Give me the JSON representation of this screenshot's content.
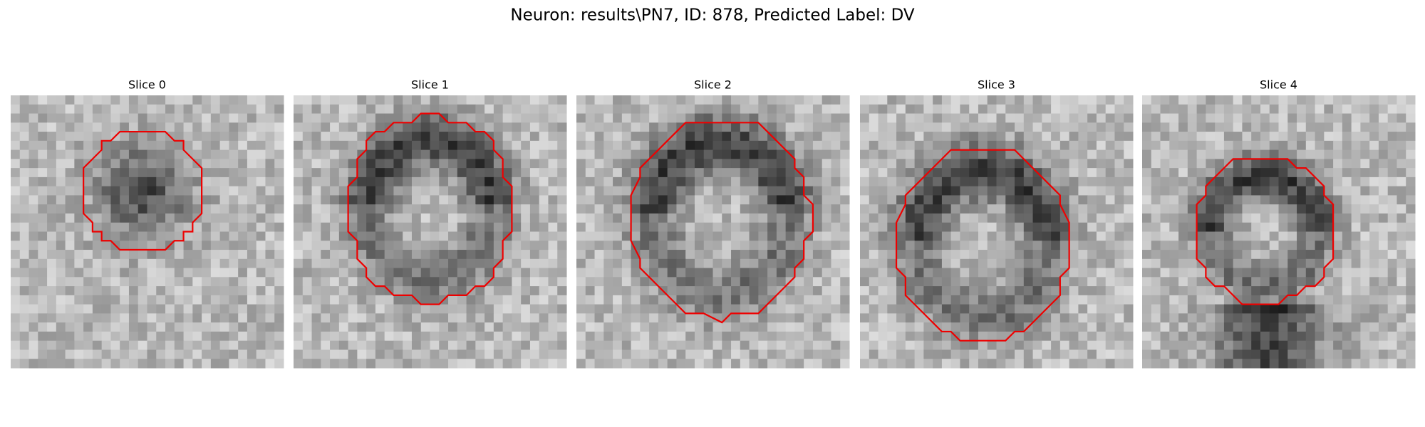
{
  "title": "Neuron: results\\PN7, ID: 878, Predicted Label: DV",
  "panels": [
    {
      "title": "Slice 0"
    },
    {
      "title": "Slice 1"
    },
    {
      "title": "Slice 2"
    },
    {
      "title": "Slice 3"
    },
    {
      "title": "Slice 4"
    }
  ]
}
